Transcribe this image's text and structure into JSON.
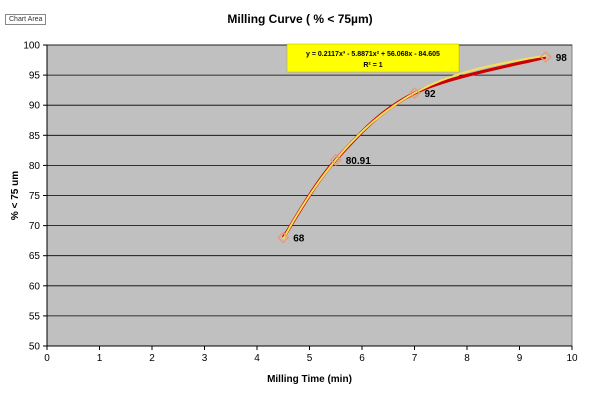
{
  "tooltip": "Chart Area",
  "chart_data": {
    "type": "scatter",
    "title": "Milling Curve ( % < 75µm)",
    "xlabel": "Milling Time (min)",
    "ylabel": "% < 75 um",
    "xlim": [
      0,
      10
    ],
    "ylim": [
      50,
      100
    ],
    "xticks": [
      0,
      1,
      2,
      3,
      4,
      5,
      6,
      7,
      8,
      9,
      10
    ],
    "yticks": [
      50,
      55,
      60,
      65,
      70,
      75,
      80,
      85,
      90,
      95,
      100
    ],
    "grid": true,
    "series": [
      {
        "points": [
          {
            "x": 4.5,
            "y": 68,
            "label": "68"
          },
          {
            "x": 5.5,
            "y": 80.91,
            "label": "80.91"
          },
          {
            "x": 7,
            "y": 92,
            "label": "92"
          },
          {
            "x": 9.5,
            "y": 98,
            "label": "98"
          }
        ],
        "color": "#cc0000",
        "marker_color": "#e89a7a"
      }
    ],
    "trendline": {
      "type": "polynomial",
      "order": 3,
      "equation": "y = 0.2117x³ - 5.8871x² + 56.068x - 84.605",
      "r_squared": "R² = 1",
      "color": "#f2e25a"
    },
    "colors": {
      "plot_bg": "#c0c0c0",
      "grid": "#000000",
      "label_box": "#ffff00"
    }
  }
}
